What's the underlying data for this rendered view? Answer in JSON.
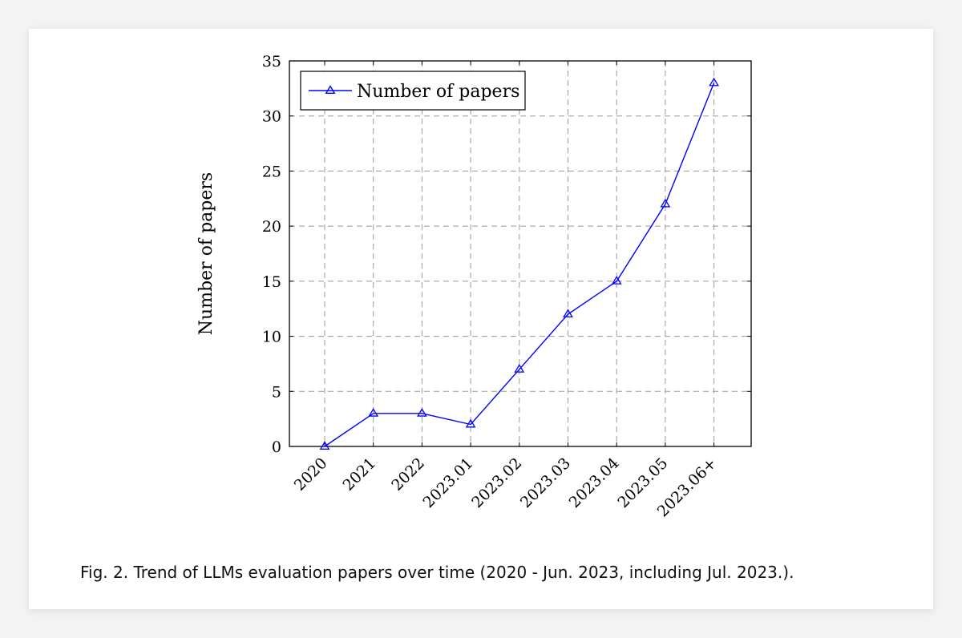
{
  "caption": "Fig. 2.  Trend of LLMs evaluation papers over time (2020 - Jun. 2023, including Jul. 2023.).",
  "chart_data": {
    "type": "line",
    "categories": [
      "2020",
      "2021",
      "2022",
      "2023.01",
      "2023.02",
      "2023.03",
      "2023.04",
      "2023.05",
      "2023.06+"
    ],
    "series": [
      {
        "name": "Number of papers",
        "values": [
          0,
          3,
          3,
          2,
          7,
          12,
          15,
          22,
          33
        ],
        "color": "#0000ff",
        "marker": "triangle"
      }
    ],
    "ylabel": "Number of papers",
    "xlabel": "",
    "ylim": [
      0,
      35
    ],
    "yticks": [
      0,
      5,
      10,
      15,
      20,
      25,
      30,
      35
    ],
    "grid": true,
    "grid_style": "dashed",
    "legend_position": "top-left"
  }
}
